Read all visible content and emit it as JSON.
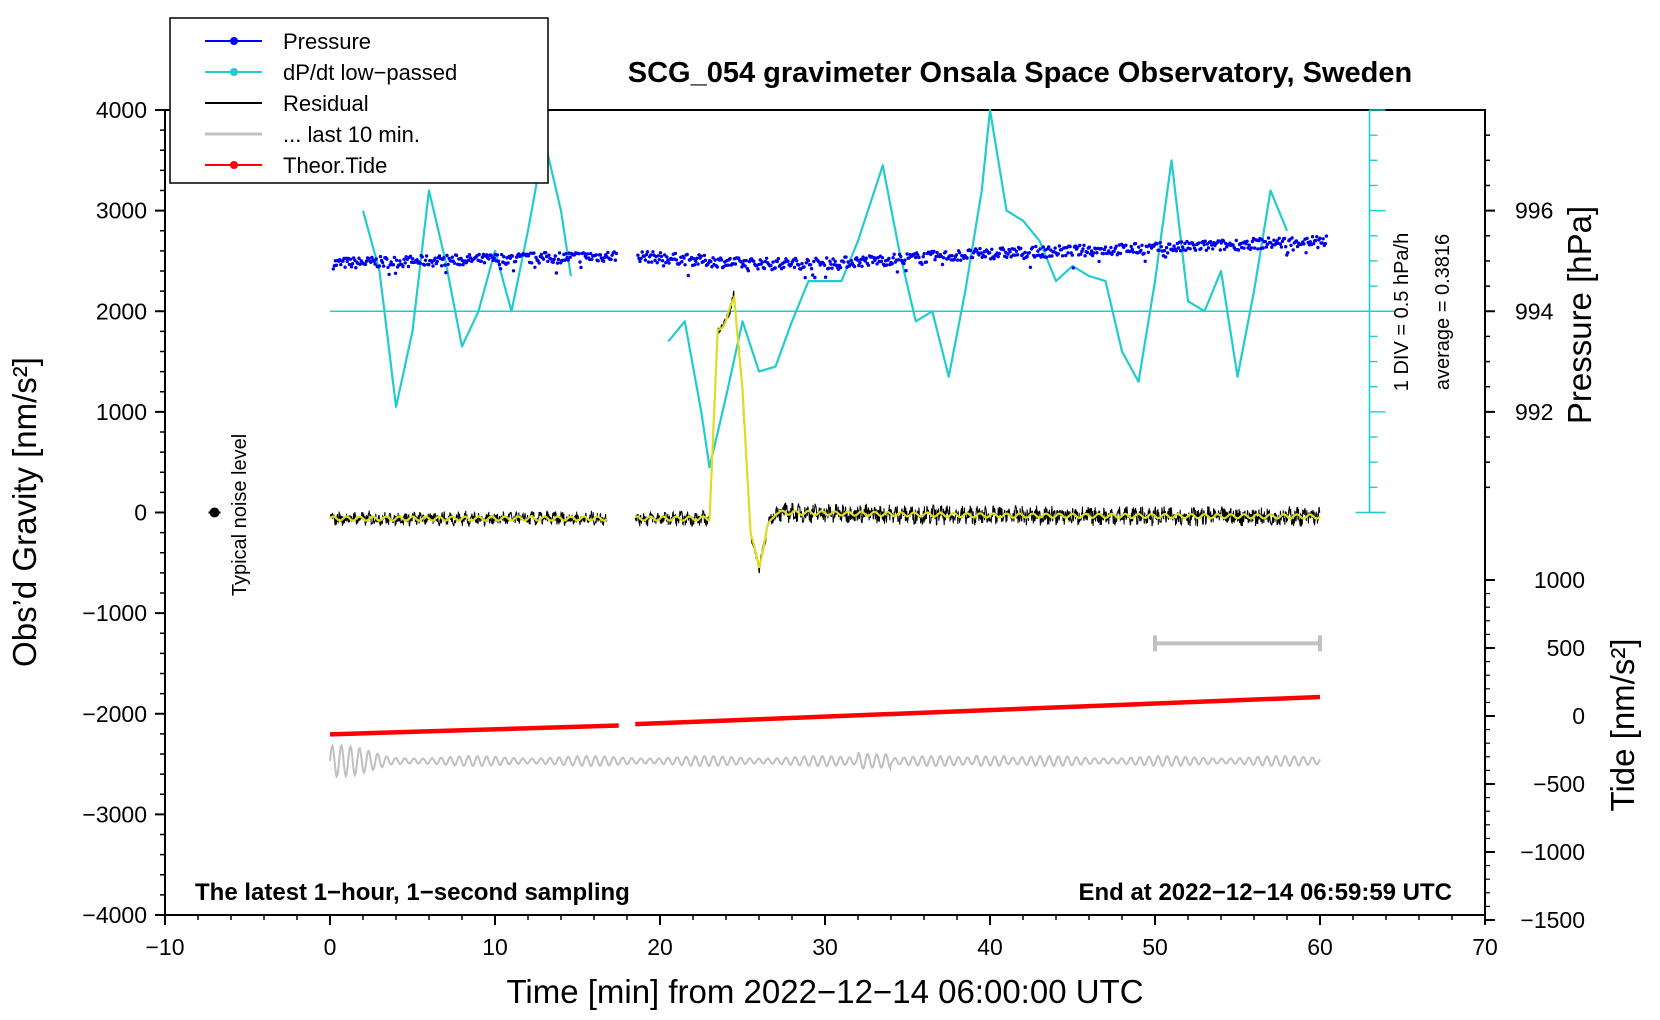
{
  "chart_data": {
    "type": "line",
    "title": "SCG_054 gravimeter Onsala Space Observatory, Sweden",
    "xlabel": "Time [min] from 2022−12−14 06:00:00 UTC",
    "ylabel": "Obs’d Gravity [nm/s²]",
    "ylabel_right_pressure": "Pressure [hPa]",
    "ylabel_right_tide": "Tide [nm/s²]",
    "xlim": [
      -10,
      70
    ],
    "ylim": [
      -4000,
      4000
    ],
    "pressure_lim": [
      990,
      998
    ],
    "tide_lim": [
      -1500,
      1500
    ],
    "x_ticks": [
      -10,
      0,
      10,
      20,
      30,
      40,
      50,
      60,
      70
    ],
    "x_tick_labels": [
      "−10",
      "0",
      "10",
      "20",
      "30",
      "40",
      "50",
      "60",
      "70"
    ],
    "y_ticks": [
      4000,
      3000,
      2000,
      1000,
      0,
      -1000,
      -2000,
      -3000,
      -4000
    ],
    "y_tick_labels": [
      "4000",
      "3000",
      "2000",
      "1000",
      "0",
      "−1000",
      "−2000",
      "−3000",
      "−4000"
    ],
    "pressure_ticks": [
      996,
      994,
      992
    ],
    "pressure_tick_labels": [
      "996",
      "994",
      "992"
    ],
    "tide_ticks": [
      1000,
      500,
      0,
      -500,
      -1000,
      -1500
    ],
    "tide_tick_labels": [
      "1000",
      "500",
      "0",
      "−500",
      "−1000",
      "−1500"
    ],
    "legend": [
      {
        "name": "Pressure",
        "color": "#0000ee",
        "marker": true
      },
      {
        "name": "dP/dt low−passed",
        "color": "#22cccc",
        "marker": true
      },
      {
        "name": "Residual",
        "color": "#000000",
        "marker": false
      },
      {
        "name": "... last 10 min.",
        "color": "#c0c0c0",
        "marker": false
      },
      {
        "name": "Theor.Tide",
        "color": "#ff0000",
        "marker": true
      }
    ],
    "legend_position": "top-left",
    "annotations": {
      "left_note": "The latest 1−hour, 1−second sampling",
      "right_note": "End at 2022−12−14 06:59:59 UTC",
      "noise_label": "Typical noise level",
      "scale_div": "1 DIV = 0.5 hPa/h",
      "scale_avg": "average = 0.3816"
    },
    "series": [
      {
        "name": "Pressure",
        "units": "hPa",
        "x": [
          0,
          17.5,
          18.5,
          25,
          30,
          40,
          50,
          60
        ],
        "values": [
          994.95,
          995.1,
          995.1,
          994.95,
          994.95,
          995.15,
          995.25,
          995.4
        ]
      },
      {
        "name": "dP/dt low−passed",
        "units": "nm/s² display",
        "x": [
          2,
          3,
          4,
          5,
          6,
          7,
          8,
          9,
          10,
          11,
          12,
          13,
          14,
          14.6,
          20.5,
          21.5,
          22.5,
          23,
          24,
          25,
          26,
          27,
          28,
          29,
          30,
          31,
          32,
          33.5,
          34.5,
          35.5,
          36.5,
          37.5,
          38.5,
          39.5,
          40,
          41,
          42,
          43,
          44,
          45,
          46,
          47,
          48,
          49,
          50,
          51,
          52,
          53,
          54,
          55,
          56,
          57,
          58
        ],
        "values": [
          3000,
          2400,
          1050,
          1800,
          3200,
          2500,
          1650,
          2000,
          2600,
          2000,
          2800,
          3700,
          3000,
          2350,
          1700,
          1900,
          1000,
          450,
          1150,
          1900,
          1400,
          1450,
          1900,
          2300,
          2300,
          2300,
          2700,
          3450,
          2600,
          1900,
          2000,
          1350,
          2200,
          3200,
          4000,
          3000,
          2900,
          2700,
          2300,
          2450,
          2350,
          2300,
          1600,
          1300,
          2300,
          3500,
          2100,
          2000,
          2400,
          1350,
          2200,
          3200,
          2800
        ]
      },
      {
        "name": "Residual",
        "units": "nm/s²",
        "x": [
          0,
          16.8,
          18.5,
          23,
          23.5,
          24.0,
          24.5,
          25.0,
          25.5,
          26.0,
          26.5,
          27,
          40,
          60
        ],
        "values": [
          -60,
          -60,
          -60,
          -60,
          1800,
          1900,
          2150,
          1200,
          -200,
          -550,
          -150,
          0,
          -30,
          -40
        ]
      },
      {
        "name": "... last 10 min.",
        "units": "display offset",
        "x": [
          0,
          60
        ],
        "values": [
          -2470,
          -2470
        ]
      },
      {
        "name": "Theor.Tide",
        "units": "nm/s² (tide axis)",
        "x": [
          0,
          17.5,
          18.5,
          60
        ],
        "values": [
          -135,
          -70,
          -60,
          140
        ]
      }
    ],
    "noise_point": {
      "x": -7,
      "y": 0
    },
    "ten_min_bar": {
      "x0": 50,
      "x1": 60,
      "y": -1300
    }
  }
}
